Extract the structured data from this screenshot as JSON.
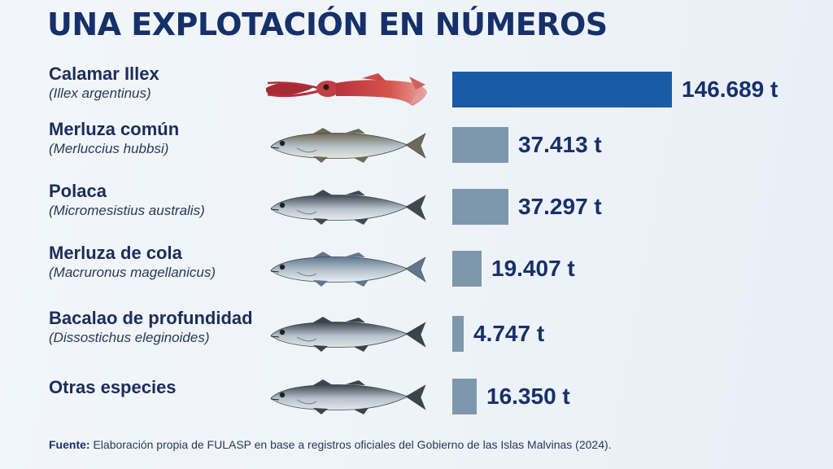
{
  "title": "UNA EXPLOTACIÓN EN NÚMEROS",
  "colors": {
    "highlight_bar": "#1a5ba6",
    "bar": "#7d97ad",
    "text": "#16306a"
  },
  "chart_data": {
    "type": "bar",
    "orientation": "horizontal",
    "categories": [
      "Calamar Illex",
      "Merluza común",
      "Polaca",
      "Merluza de cola",
      "Bacalao de profundidad",
      "Otras especies"
    ],
    "scientific_names": [
      "(Illex argentinus)",
      "(Merluccius hubbsi)",
      "(Micromesistius australis)",
      "(Macruronus magellanicus)",
      "(Dissostichus eleginoides)",
      ""
    ],
    "values": [
      146689,
      37413,
      37297,
      19407,
      4747,
      16350
    ],
    "value_labels": [
      "146.689 t",
      "37.413 t",
      "37.297 t",
      "19.407 t",
      "4.747 t",
      "16.350 t"
    ],
    "icons": [
      "squid-icon",
      "fish-icon",
      "fish-icon",
      "fish-icon",
      "fish-icon",
      "fish-icon"
    ],
    "unit": "t"
  },
  "source": {
    "label": "Fuente:",
    "text": "Elaboración propia de FULASP en base a registros oficiales del Gobierno de las Islas Malvinas (2024)."
  }
}
